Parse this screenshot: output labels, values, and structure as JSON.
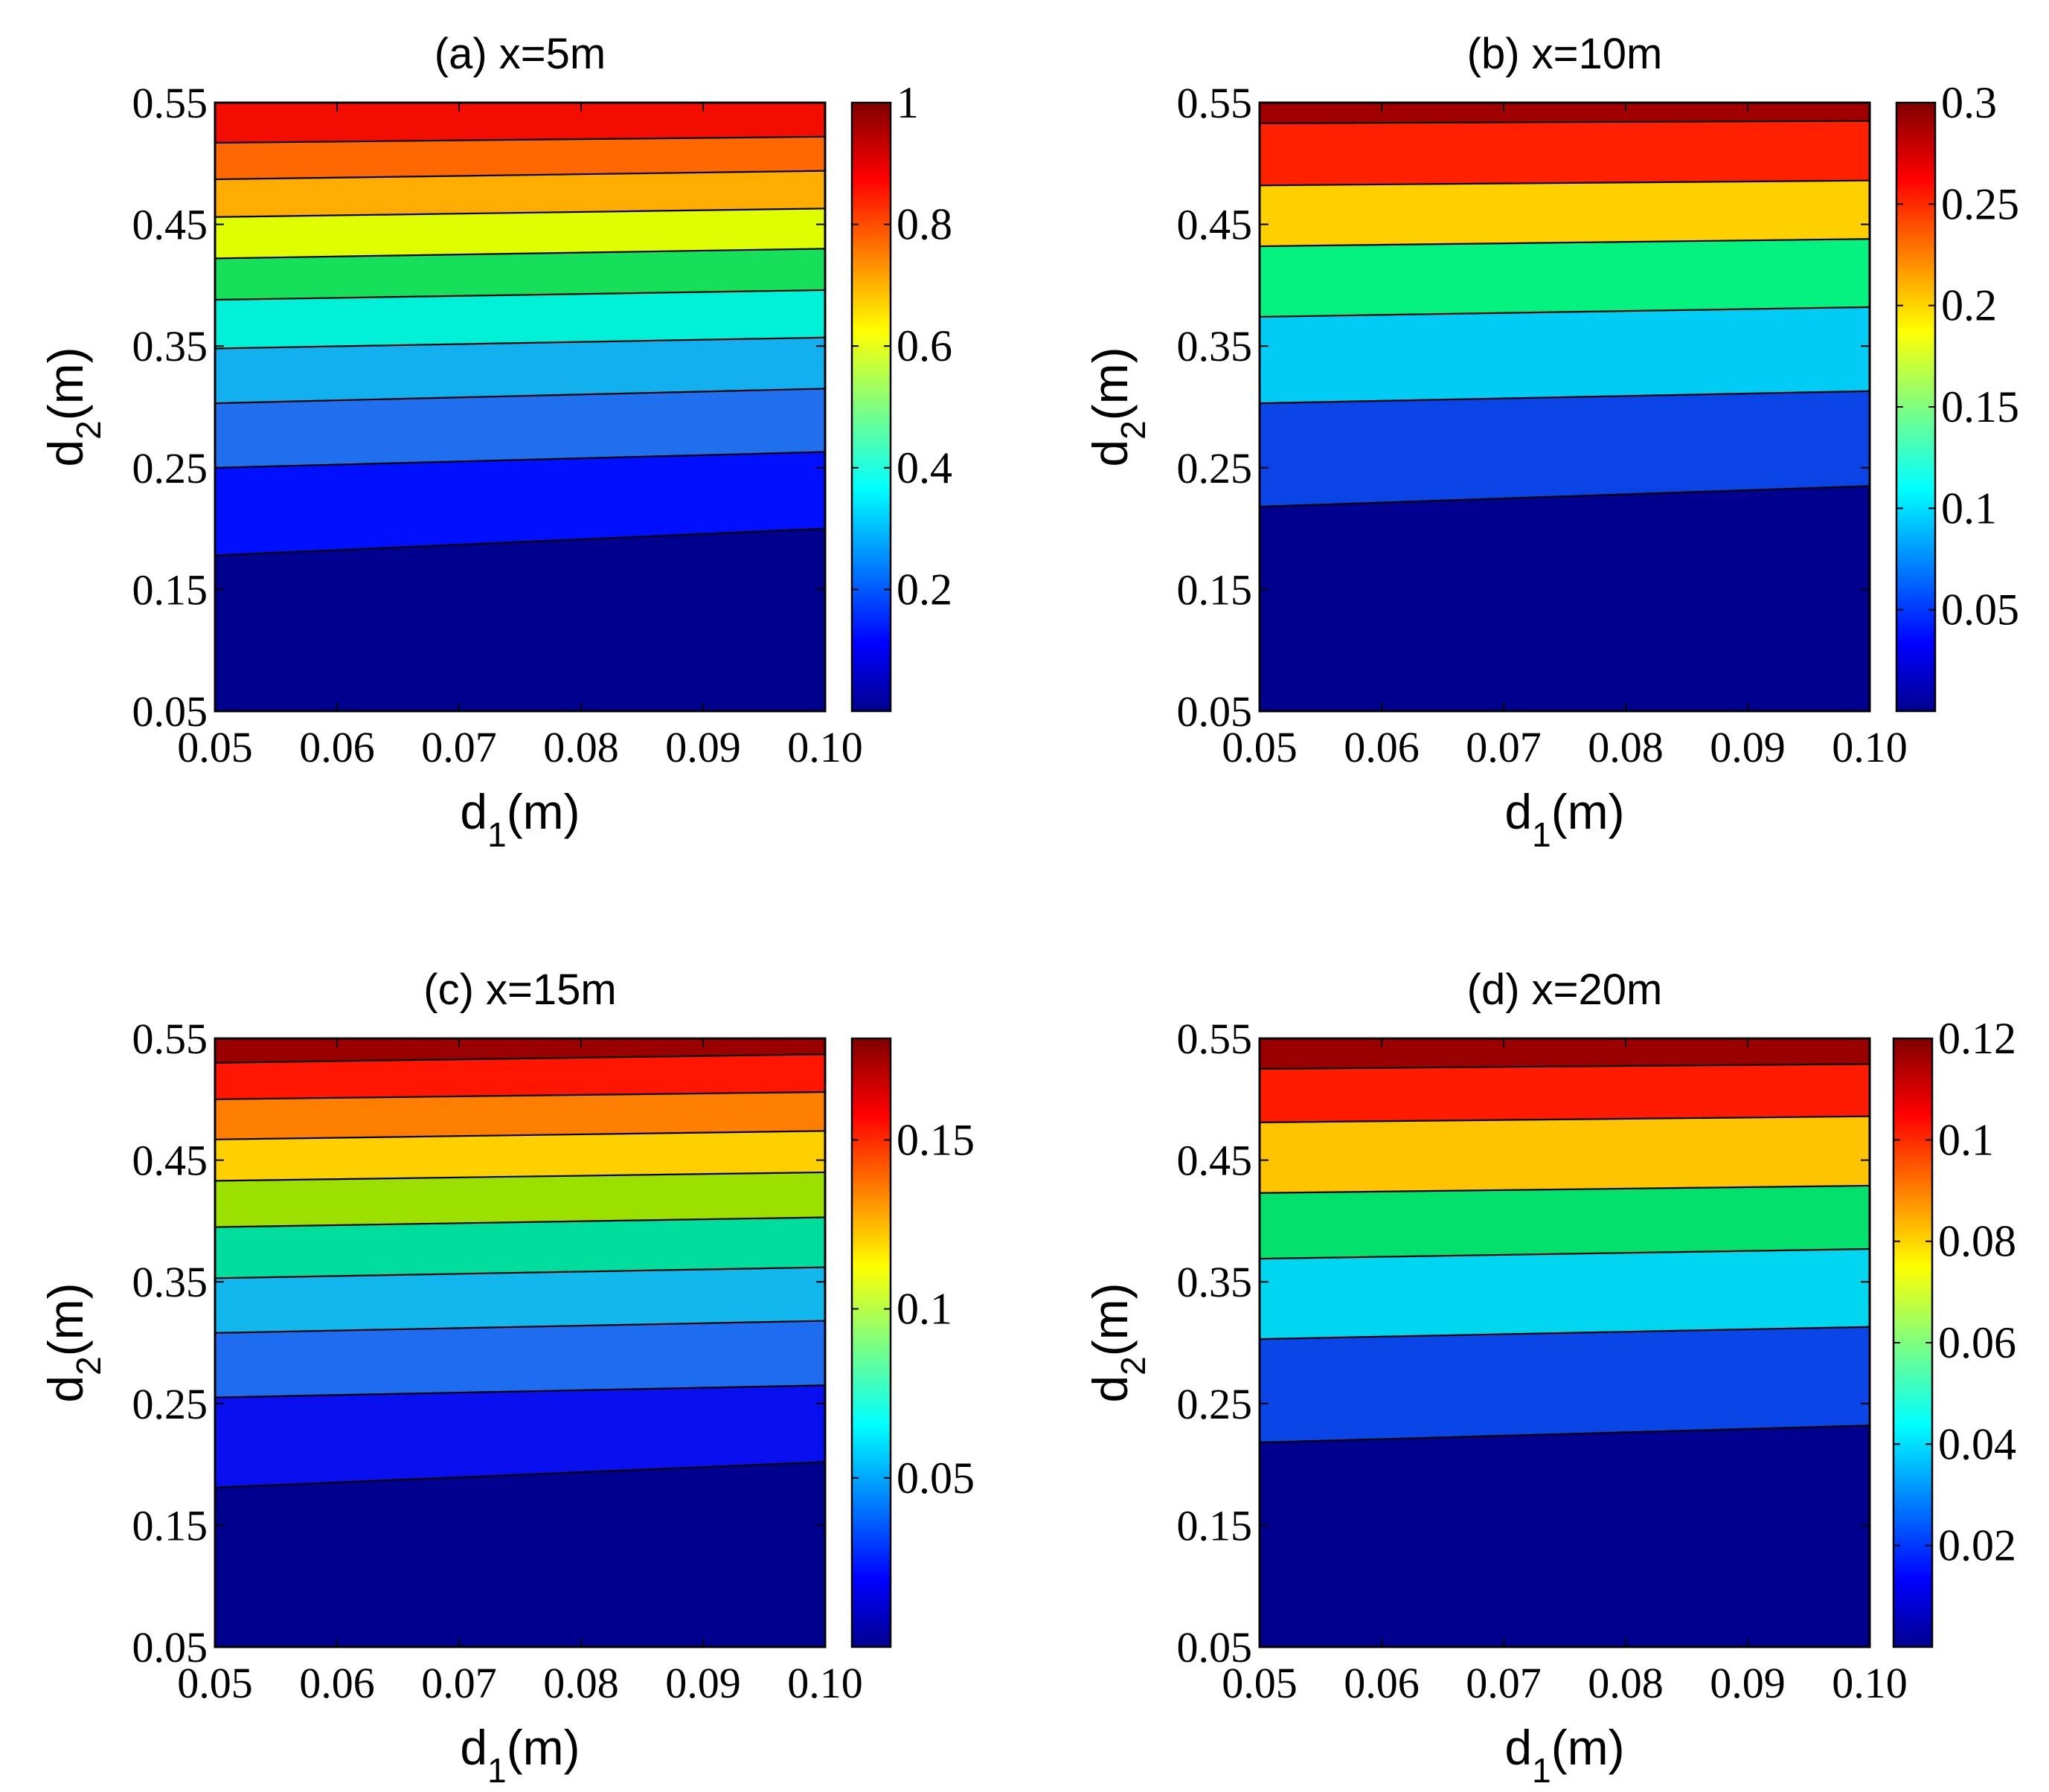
{
  "chart_data": [
    {
      "type": "heatmap",
      "title": "(a) x=5m",
      "xlabel": {
        "base": "d",
        "sub": "1",
        "unit": "(m)"
      },
      "ylabel": {
        "base": "d",
        "sub": "2",
        "unit": "(m)"
      },
      "xlim": [
        0.05,
        0.1
      ],
      "ylim": [
        0.05,
        0.55
      ],
      "xticks": [
        "0.05",
        "0.06",
        "0.07",
        "0.08",
        "0.09",
        "0.10"
      ],
      "yticks": [
        "0.05",
        "0.15",
        "0.25",
        "0.35",
        "0.45",
        "0.55"
      ],
      "colorbar": {
        "min": 0,
        "max": 1,
        "ticks": [
          0.2,
          0.4,
          0.6,
          0.8,
          1
        ],
        "tick_labels": [
          "0.2",
          "0.4",
          "0.6",
          "0.8",
          "1"
        ]
      },
      "contours": [
        {
          "left": 0.178,
          "right": 0.2
        },
        {
          "left": 0.25,
          "right": 0.263
        },
        {
          "left": 0.303,
          "right": 0.315
        },
        {
          "left": 0.348,
          "right": 0.357
        },
        {
          "left": 0.388,
          "right": 0.396
        },
        {
          "left": 0.422,
          "right": 0.43
        },
        {
          "left": 0.456,
          "right": 0.463
        },
        {
          "left": 0.487,
          "right": 0.494
        },
        {
          "left": 0.517,
          "right": 0.522
        }
      ],
      "band_colors": [
        "#00008f",
        "#0010ff",
        "#1f6fef",
        "#13b0ef",
        "#00f0d8",
        "#16e05a",
        "#dfff00",
        "#ffac00",
        "#ff6800",
        "#f30d00"
      ]
    },
    {
      "type": "heatmap",
      "title": "(b) x=10m",
      "xlabel": {
        "base": "d",
        "sub": "1",
        "unit": "(m)"
      },
      "ylabel": {
        "base": "d",
        "sub": "2",
        "unit": "(m)"
      },
      "xlim": [
        0.05,
        0.1
      ],
      "ylim": [
        0.05,
        0.55
      ],
      "xticks": [
        "0.05",
        "0.06",
        "0.07",
        "0.08",
        "0.09",
        "0.10"
      ],
      "yticks": [
        "0.05",
        "0.15",
        "0.25",
        "0.35",
        "0.45",
        "0.55"
      ],
      "colorbar": {
        "min": 0,
        "max": 0.3,
        "ticks": [
          0.05,
          0.1,
          0.15,
          0.2,
          0.25,
          0.3
        ],
        "tick_labels": [
          "0.05",
          "0.1",
          "0.15",
          "0.2",
          "0.25",
          "0.3"
        ]
      },
      "contours": [
        {
          "left": 0.218,
          "right": 0.235
        },
        {
          "left": 0.303,
          "right": 0.313
        },
        {
          "left": 0.374,
          "right": 0.382
        },
        {
          "left": 0.432,
          "right": 0.438
        },
        {
          "left": 0.482,
          "right": 0.486
        },
        {
          "left": 0.533,
          "right": 0.535
        }
      ],
      "band_colors": [
        "#00008f",
        "#0a43e6",
        "#00ccf5",
        "#06f280",
        "#ffd000",
        "#ff2000",
        "#a10000"
      ]
    },
    {
      "type": "heatmap",
      "title": "(c) x=15m",
      "xlabel": {
        "base": "d",
        "sub": "1",
        "unit": "(m)"
      },
      "ylabel": {
        "base": "d",
        "sub": "2",
        "unit": "(m)"
      },
      "xlim": [
        0.05,
        0.1
      ],
      "ylim": [
        0.05,
        0.55
      ],
      "xticks": [
        "0.05",
        "0.06",
        "0.07",
        "0.08",
        "0.09",
        "0.10"
      ],
      "yticks": [
        "0.05",
        "0.15",
        "0.25",
        "0.35",
        "0.45",
        "0.55"
      ],
      "colorbar": {
        "min": 0,
        "max": 0.18,
        "ticks": [
          0.05,
          0.1,
          0.15
        ],
        "tick_labels": [
          "0.05",
          "0.1",
          "0.15"
        ]
      },
      "contours": [
        {
          "left": 0.181,
          "right": 0.202
        },
        {
          "left": 0.255,
          "right": 0.265
        },
        {
          "left": 0.308,
          "right": 0.318
        },
        {
          "left": 0.353,
          "right": 0.362
        },
        {
          "left": 0.395,
          "right": 0.403
        },
        {
          "left": 0.433,
          "right": 0.44
        },
        {
          "left": 0.467,
          "right": 0.474
        },
        {
          "left": 0.5,
          "right": 0.506
        },
        {
          "left": 0.53,
          "right": 0.537
        }
      ],
      "band_colors": [
        "#00008f",
        "#0a0ff0",
        "#1e6cef",
        "#12b7ee",
        "#00dd9c",
        "#9ce000",
        "#ffd000",
        "#ff7e00",
        "#ff1500",
        "#9b0000"
      ]
    },
    {
      "type": "heatmap",
      "title": "(d) x=20m",
      "xlabel": {
        "base": "d",
        "sub": "1",
        "unit": "(m)"
      },
      "ylabel": {
        "base": "d",
        "sub": "2",
        "unit": "(m)"
      },
      "xlim": [
        0.05,
        0.1
      ],
      "ylim": [
        0.05,
        0.55
      ],
      "xticks": [
        "0.05",
        "0.06",
        "0.07",
        "0.08",
        "0.09",
        "0.10"
      ],
      "yticks": [
        "0.05",
        "0.15",
        "0.25",
        "0.35",
        "0.45",
        "0.55"
      ],
      "colorbar": {
        "min": 0,
        "max": 0.12,
        "ticks": [
          0.02,
          0.04,
          0.06,
          0.08,
          0.1,
          0.12
        ],
        "tick_labels": [
          "0.02",
          "0.04",
          "0.06",
          "0.08",
          "0.1",
          "0.12"
        ]
      },
      "contours": [
        {
          "left": 0.218,
          "right": 0.232
        },
        {
          "left": 0.303,
          "right": 0.313
        },
        {
          "left": 0.369,
          "right": 0.377
        },
        {
          "left": 0.423,
          "right": 0.429
        },
        {
          "left": 0.481,
          "right": 0.486
        },
        {
          "left": 0.525,
          "right": 0.529
        }
      ],
      "band_colors": [
        "#00008f",
        "#0a45e8",
        "#00d6f0",
        "#04e06c",
        "#ffc400",
        "#ff1a00",
        "#9b0000"
      ]
    }
  ]
}
